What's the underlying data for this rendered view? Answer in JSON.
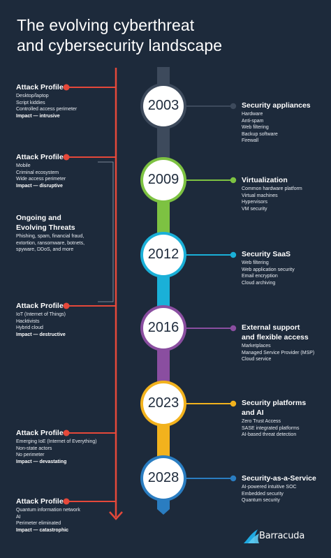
{
  "title": {
    "line1": "The evolving cyberthreat",
    "line2": "and cybersecurity landscape"
  },
  "colors": {
    "background": "#1d2a3b",
    "timeline_red": "#e5483a",
    "segment_2003": "#3d4a5c",
    "segment_2009": "#7dc242",
    "segment_2012": "#1ab0d8",
    "segment_2016": "#8a4ea0",
    "segment_2023": "#f2b21d",
    "segment_2028": "#2a7dc1"
  },
  "years": [
    {
      "label": "2003",
      "color": "#3d4a5c"
    },
    {
      "label": "2009",
      "color": "#7dc242"
    },
    {
      "label": "2012",
      "color": "#1ab0d8"
    },
    {
      "label": "2016",
      "color": "#8a4ea0"
    },
    {
      "label": "2023",
      "color": "#f2b21d"
    },
    {
      "label": "2028",
      "color": "#2a7dc1"
    }
  ],
  "right": [
    {
      "head": [
        "Security appliances"
      ],
      "items": [
        "Hardware",
        "Anti-spam",
        "Web filtering",
        "Backup software",
        "Firewall"
      ]
    },
    {
      "head": [
        "Virtualization"
      ],
      "items": [
        "Common hardware platform",
        "Virtual machines",
        "Hypervisors",
        "VM security"
      ]
    },
    {
      "head": [
        "Security SaaS"
      ],
      "items": [
        "Web filtering",
        "Web application security",
        "Email encryption",
        "Cloud archiving"
      ]
    },
    {
      "head": [
        "External support",
        "and flexible access"
      ],
      "items": [
        "Marketplaces",
        "Managed Service Provider (MSP)",
        "Cloud service"
      ]
    },
    {
      "head": [
        "Security platforms",
        "and AI"
      ],
      "items": [
        "Zero Trust Access",
        "SASE integrated platforms",
        "AI-based threat detection"
      ]
    },
    {
      "head": [
        "Security-as-a-Service"
      ],
      "items": [
        "AI-powered intuitive SOC",
        "Embedded security",
        "Quantum security"
      ]
    }
  ],
  "left": [
    {
      "head": [
        "Attack Profile"
      ],
      "items": [
        "Desktop/laptop",
        "Script kiddies",
        "Controlled access perimeter"
      ],
      "impact": "Impact — intrusive"
    },
    {
      "head": [
        "Attack Profile"
      ],
      "items": [
        "Mobile",
        "Criminal ecosystem",
        "Wide access perimeter"
      ],
      "impact": "Impact — disruptive"
    },
    {
      "head": [
        "Ongoing and",
        "Evolving Threats"
      ],
      "items": [
        "Phishing, spam, financial fraud,",
        "extortion, ransomware, botnets,",
        "spyware, DDoS, and more"
      ],
      "impact": ""
    },
    {
      "head": [
        "Attack Profile"
      ],
      "items": [
        "IoT (Internet of Things)",
        "Hacktivists",
        "Hybrid cloud"
      ],
      "impact": "Impact — destructive"
    },
    {
      "head": [
        "Attack Profile"
      ],
      "items": [
        "Emerging IoE (Internet of Everything)",
        "Non-state actors",
        "No perimeter"
      ],
      "impact": "Impact — devastating"
    },
    {
      "head": [
        "Attack Profile"
      ],
      "items": [
        "Quantum information network",
        "AI",
        "Perimeter eliminated"
      ],
      "impact": "Impact — catastrophic"
    }
  ],
  "logo": {
    "text": "Barracuda",
    "icon": "barracuda-logo-icon"
  }
}
